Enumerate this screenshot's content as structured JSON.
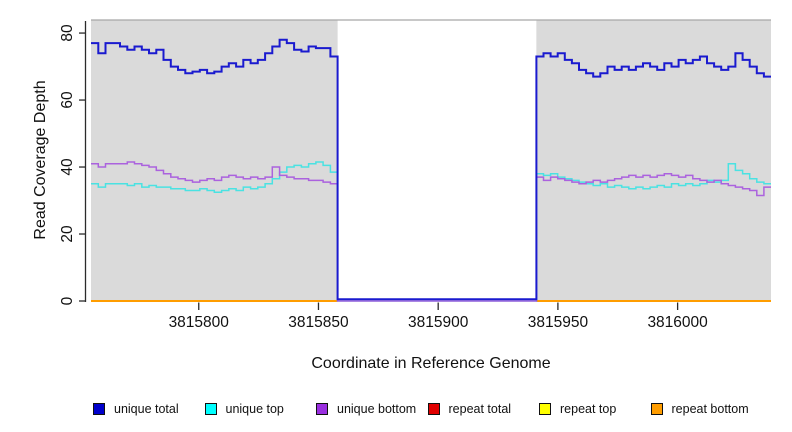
{
  "chart_data": {
    "type": "line",
    "subtype": "step-post-coverage",
    "title": "",
    "xlabel": "Coordinate in Reference Genome",
    "ylabel": "Read Coverage Depth",
    "xlim": [
      3815755,
      3816039
    ],
    "ylim": [
      0,
      83.9
    ],
    "xticks": [
      3815800,
      3815850,
      3815900,
      3815950,
      3816000
    ],
    "xtick_labels": [
      "3815800",
      "3815850",
      "3815900",
      "3815950",
      "3816000"
    ],
    "yticks": [
      0,
      20,
      40,
      60,
      80
    ],
    "ytick_labels": [
      "0",
      "20",
      "40",
      "60",
      "80"
    ],
    "grid": false,
    "plot_bg": "#dadada",
    "plot_top_border_color": "#a8a8a8",
    "axis_color": "#2b2b2b",
    "gap_region": [
      3815858,
      3815941
    ],
    "legend_position": "bottom",
    "series": [
      {
        "name": "unique total",
        "color": "#1a1acf",
        "legend_color": "#0000cc",
        "width": 2,
        "segments": [
          [
            {
              "x0": 3815755,
              "x1": 3815858,
              "values": [
                77,
                74,
                77,
                77,
                76,
                75,
                76,
                75,
                74,
                75,
                72,
                70,
                69,
                68,
                68.5,
                69,
                68,
                68.5,
                70,
                71,
                70,
                72,
                71,
                72,
                74,
                76,
                78,
                77,
                75,
                74.5,
                76,
                75.5,
                75.5,
                73
              ]
            },
            {
              "x0": 3815858,
              "x1": 3815941,
              "values": [
                0.5
              ]
            },
            {
              "x0": 3815941,
              "x1": 3816039,
              "values": [
                73,
                74,
                73,
                74,
                72,
                71,
                69,
                68,
                67,
                68,
                70,
                69,
                70,
                69,
                70,
                71,
                70,
                69,
                71,
                70,
                72,
                71,
                72,
                73,
                71,
                70,
                69,
                70,
                74,
                72,
                70,
                68,
                67
              ]
            }
          ]
        ]
      },
      {
        "name": "unique top",
        "color": "#4ae2e2",
        "legend_color": "#00ffff",
        "width": 1.5,
        "segments": [
          [
            {
              "x0": 3815755,
              "x1": 3815858,
              "values": [
                35,
                34,
                35,
                35,
                35,
                34.5,
                35,
                34,
                34.5,
                34,
                34,
                33.5,
                33.5,
                33,
                33,
                33.5,
                33,
                32.5,
                33,
                33.5,
                33,
                34,
                33.5,
                34,
                35,
                36.5,
                38.5,
                40,
                40.5,
                40,
                41,
                41.5,
                40.5,
                38.5
              ]
            },
            {
              "x0": 3815858,
              "x1": 3815941,
              "values": [
                0
              ]
            },
            {
              "x0": 3815941,
              "x1": 3816039,
              "values": [
                38,
                37.5,
                38,
                37,
                36.5,
                36,
                35.5,
                35,
                34.5,
                35,
                34,
                34.5,
                34,
                33.5,
                34,
                33.5,
                34,
                34.5,
                34,
                35,
                34.5,
                35,
                34.5,
                35,
                36,
                35.5,
                36,
                41,
                39,
                38,
                36.5,
                35.5,
                35
              ]
            }
          ]
        ]
      },
      {
        "name": "unique bottom",
        "color": "#ab62de",
        "legend_color": "#9a2fe0",
        "width": 1.5,
        "segments": [
          [
            {
              "x0": 3815755,
              "x1": 3815858,
              "values": [
                41,
                40,
                41,
                41,
                41,
                41.5,
                41,
                40.5,
                40,
                39,
                38,
                37,
                36.5,
                36,
                35.5,
                36,
                36.5,
                36,
                37,
                37.5,
                37,
                36.5,
                37,
                36.5,
                37,
                40,
                37.5,
                37,
                36.5,
                36.5,
                36,
                36,
                35.5,
                35
              ]
            },
            {
              "x0": 3815858,
              "x1": 3815941,
              "values": [
                0
              ]
            },
            {
              "x0": 3815941,
              "x1": 3816039,
              "values": [
                37,
                36,
                37,
                36.5,
                36,
                35.5,
                35,
                35.5,
                36,
                35.5,
                36,
                36.5,
                37,
                37.5,
                37,
                37.5,
                37,
                37.5,
                38,
                37.5,
                37,
                37.5,
                36.5,
                36,
                35.5,
                36,
                35,
                34.5,
                34,
                33.5,
                33,
                31.5,
                34
              ]
            }
          ]
        ]
      },
      {
        "name": "repeat total",
        "color": "#e10000",
        "legend_color": "#e10000",
        "width": 1.5,
        "segments": [
          [
            {
              "x0": 3815755,
              "x1": 3815858,
              "values": [
                0
              ]
            }
          ],
          [
            {
              "x0": 3815941,
              "x1": 3816039,
              "values": [
                0
              ]
            }
          ]
        ]
      },
      {
        "name": "repeat top",
        "color": "#ffff00",
        "legend_color": "#ffff00",
        "width": 1.5,
        "segments": [
          [
            {
              "x0": 3815755,
              "x1": 3815858,
              "values": [
                0
              ]
            }
          ],
          [
            {
              "x0": 3815941,
              "x1": 3816039,
              "values": [
                0
              ]
            }
          ]
        ]
      },
      {
        "name": "repeat bottom",
        "color": "#ff9d00",
        "legend_color": "#ff9d00",
        "width": 2,
        "segments": [
          [
            {
              "x0": 3815755,
              "x1": 3815858,
              "values": [
                0
              ]
            }
          ],
          [
            {
              "x0": 3815941,
              "x1": 3816039,
              "values": [
                0
              ]
            }
          ]
        ]
      }
    ]
  }
}
